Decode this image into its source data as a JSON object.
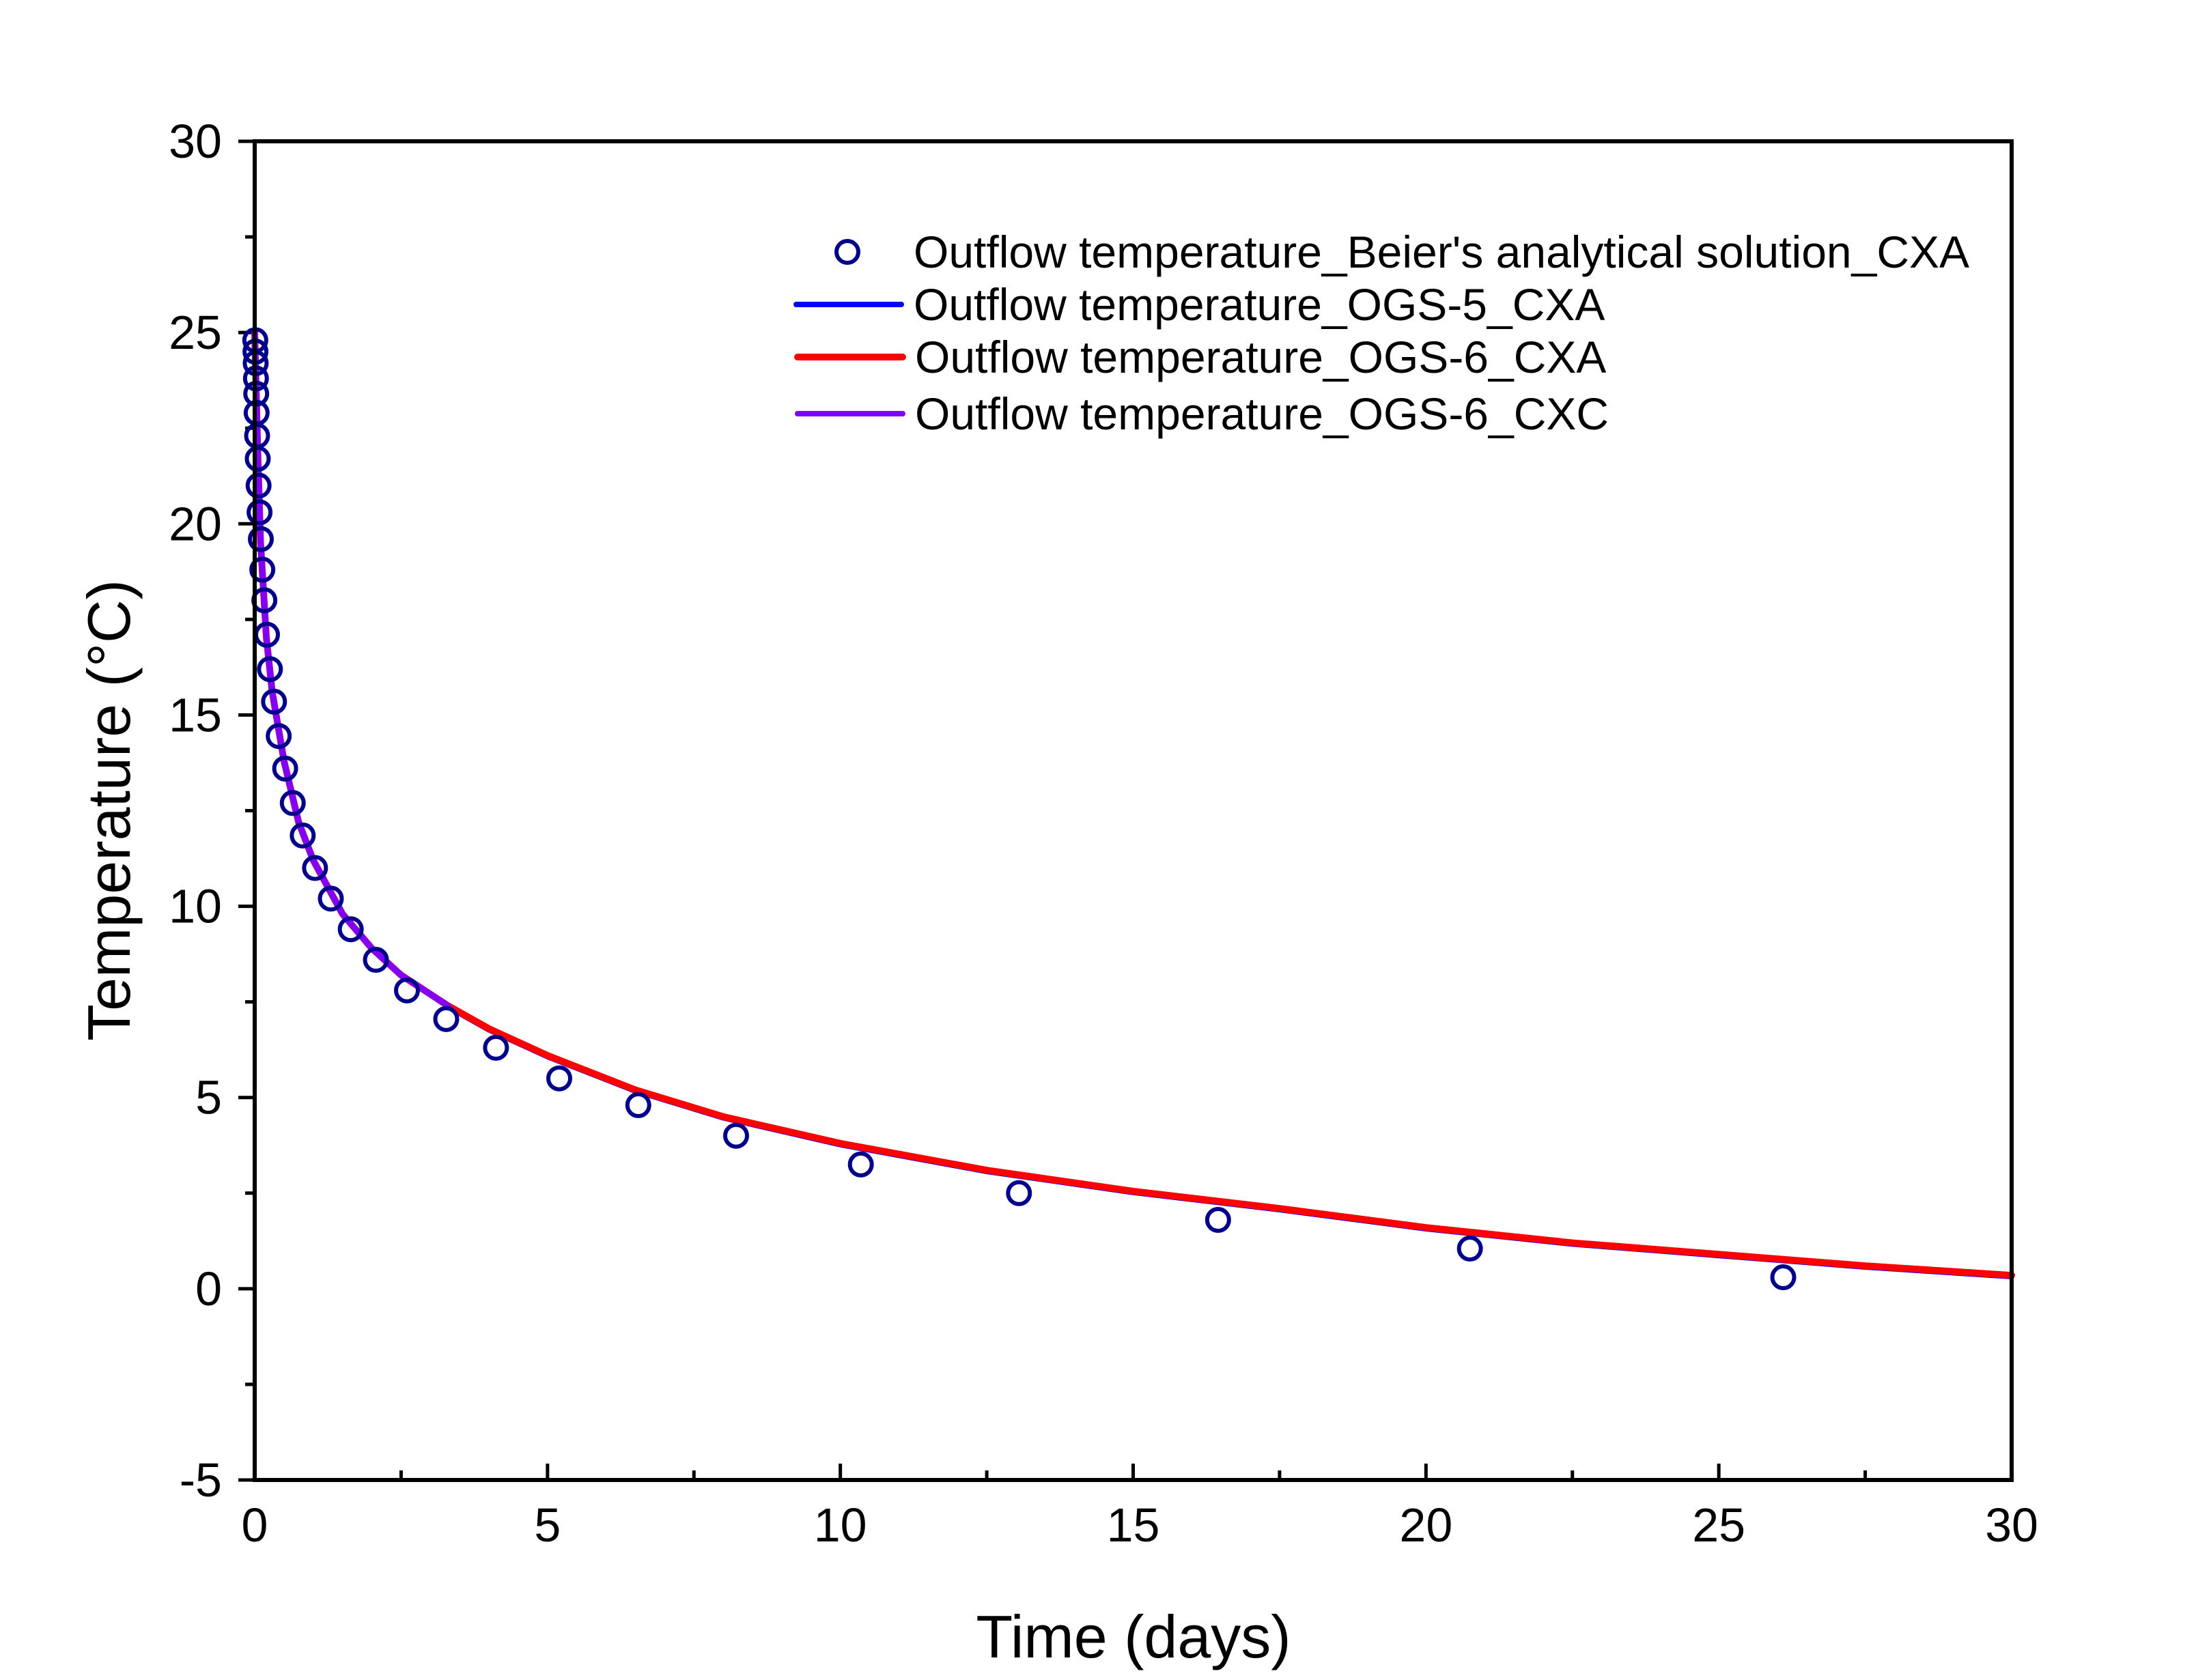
{
  "chart_data": {
    "type": "line",
    "title": "",
    "xlabel": "Time (days)",
    "ylabel": "Temperature (°C)",
    "xlim": [
      0,
      30
    ],
    "ylim": [
      -5,
      30
    ],
    "xticks": [
      0,
      5,
      10,
      15,
      20,
      25,
      30
    ],
    "yticks": [
      -5,
      0,
      5,
      10,
      15,
      20,
      25,
      30
    ],
    "grid": false,
    "legend_position": "top-right",
    "series": [
      {
        "name": "Outflow temperature_Beier's analytical solution_CXA",
        "kind": "scatter",
        "marker": "open-circle",
        "color": "#00008b",
        "x": [
          0.01,
          0.013,
          0.017,
          0.021,
          0.026,
          0.033,
          0.041,
          0.052,
          0.066,
          0.083,
          0.105,
          0.13,
          0.165,
          0.21,
          0.26,
          0.33,
          0.41,
          0.52,
          0.65,
          0.82,
          1.03,
          1.3,
          1.64,
          2.07,
          2.6,
          3.27,
          4.12,
          5.2,
          6.55,
          8.22,
          10.35,
          13.05,
          16.45,
          20.75,
          26.1
        ],
        "y": [
          24.8,
          24.5,
          24.2,
          23.8,
          23.4,
          22.9,
          22.3,
          21.7,
          21.0,
          20.3,
          19.6,
          18.8,
          18.0,
          17.1,
          16.2,
          15.35,
          14.45,
          13.6,
          12.7,
          11.85,
          11.0,
          10.2,
          9.4,
          8.6,
          7.8,
          7.05,
          6.3,
          5.5,
          4.8,
          4.0,
          3.25,
          2.5,
          1.8,
          1.05,
          0.3
        ]
      },
      {
        "name": "Outflow temperature_OGS-5_CXA",
        "kind": "line",
        "color": "#0000ff",
        "x": [
          0,
          0.05,
          0.1,
          0.2,
          0.3,
          0.5,
          0.75,
          1,
          1.5,
          2,
          2.5,
          3.3,
          4,
          5,
          6.5,
          8,
          10,
          12.5,
          15,
          17.5,
          20,
          22.5,
          25,
          27.5,
          30
        ],
        "y": [
          25,
          22,
          19.5,
          17,
          15.6,
          13.8,
          12.2,
          11.2,
          9.8,
          8.9,
          8.2,
          7.35,
          6.75,
          6.05,
          5.15,
          4.45,
          3.75,
          3.05,
          2.5,
          2.05,
          1.55,
          1.15,
          0.85,
          0.55,
          0.3
        ]
      },
      {
        "name": "Outflow temperature_OGS-6_CXA",
        "kind": "line",
        "color": "#ff0000",
        "x": [
          0,
          0.05,
          0.1,
          0.2,
          0.3,
          0.5,
          0.75,
          1,
          1.5,
          2,
          2.5,
          3.3,
          4,
          5,
          6.5,
          8,
          10,
          12.5,
          15,
          17.5,
          20,
          22.5,
          25,
          27.5,
          30
        ],
        "y": [
          25,
          22,
          19.5,
          17,
          15.6,
          13.8,
          12.2,
          11.2,
          9.8,
          8.9,
          8.2,
          7.4,
          6.8,
          6.1,
          5.2,
          4.5,
          3.8,
          3.1,
          2.55,
          2.1,
          1.6,
          1.2,
          0.9,
          0.6,
          0.35
        ]
      },
      {
        "name": "Outflow temperature_OGS-6_CXC",
        "kind": "line",
        "color": "#8000ff",
        "x": [
          0,
          0.05,
          0.1,
          0.2,
          0.3,
          0.5,
          0.75,
          1,
          1.5,
          2,
          2.5,
          3.3
        ],
        "y": [
          25,
          22,
          19.5,
          17,
          15.6,
          13.8,
          12.2,
          11.2,
          9.8,
          8.9,
          8.2,
          7.4
        ]
      }
    ]
  }
}
